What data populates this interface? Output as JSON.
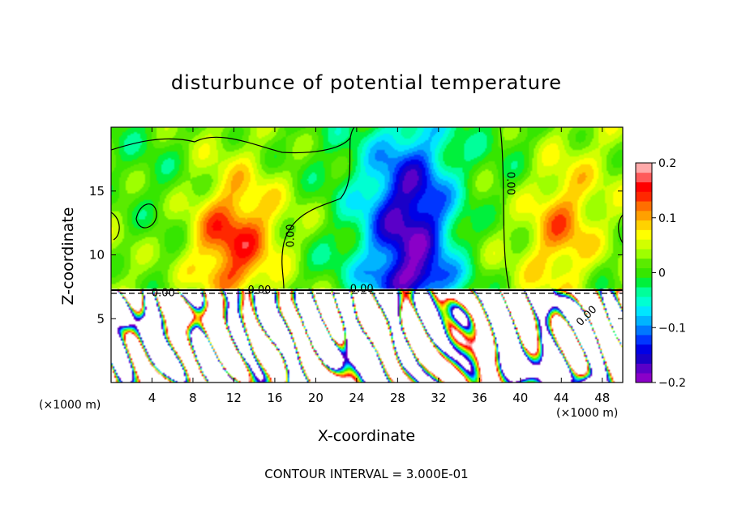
{
  "chart_data": {
    "type": "heatmap",
    "title": "disturbunce of potential temperature",
    "xlabel": "X-coordinate",
    "ylabel": "Z-coordinate",
    "x_unit": "(×1000 m)",
    "x_unit_right": "(×1000 m)",
    "footer": "CONTOUR INTERVAL = 3.000E-01",
    "xlim": [
      0,
      50
    ],
    "ylim": [
      0,
      20
    ],
    "x_ticks": [
      4,
      8,
      12,
      16,
      20,
      24,
      28,
      32,
      36,
      40,
      44,
      48
    ],
    "y_ticks": [
      5,
      10,
      15
    ],
    "colorbar": {
      "min": -0.2,
      "max": 0.2,
      "ticks": [
        0.2,
        0.1,
        0,
        -0.1,
        -0.2
      ],
      "tick_labels": [
        "0.2",
        "0.1",
        "0",
        "−0.1",
        "−0.2"
      ],
      "colors": [
        "#8a00c8",
        "#5a00c8",
        "#1a00c8",
        "#0000e6",
        "#0036ff",
        "#0078ff",
        "#00b4ff",
        "#00e6ff",
        "#00ffd2",
        "#00ff9a",
        "#00f03c",
        "#36e600",
        "#5aeb00",
        "#9eff00",
        "#d2ff00",
        "#ffff00",
        "#ffd200",
        "#ffa000",
        "#ff6e00",
        "#ff2800",
        "#ff0000",
        "#ff5a5a",
        "#ffaaaa"
      ]
    },
    "contour_labels": [
      "0.00",
      "0.00",
      "0.00",
      "0.00",
      "0.00",
      "0.00"
    ],
    "features": [
      {
        "x": 29.5,
        "z": 13,
        "value": -0.19,
        "sx": 3.2,
        "sz": 6
      },
      {
        "x": 11.5,
        "z": 11,
        "value": 0.13,
        "sx": 3.0,
        "sz": 3.2
      },
      {
        "x": 44,
        "z": 12,
        "value": 0.11,
        "sx": 2.6,
        "sz": 4
      }
    ]
  }
}
